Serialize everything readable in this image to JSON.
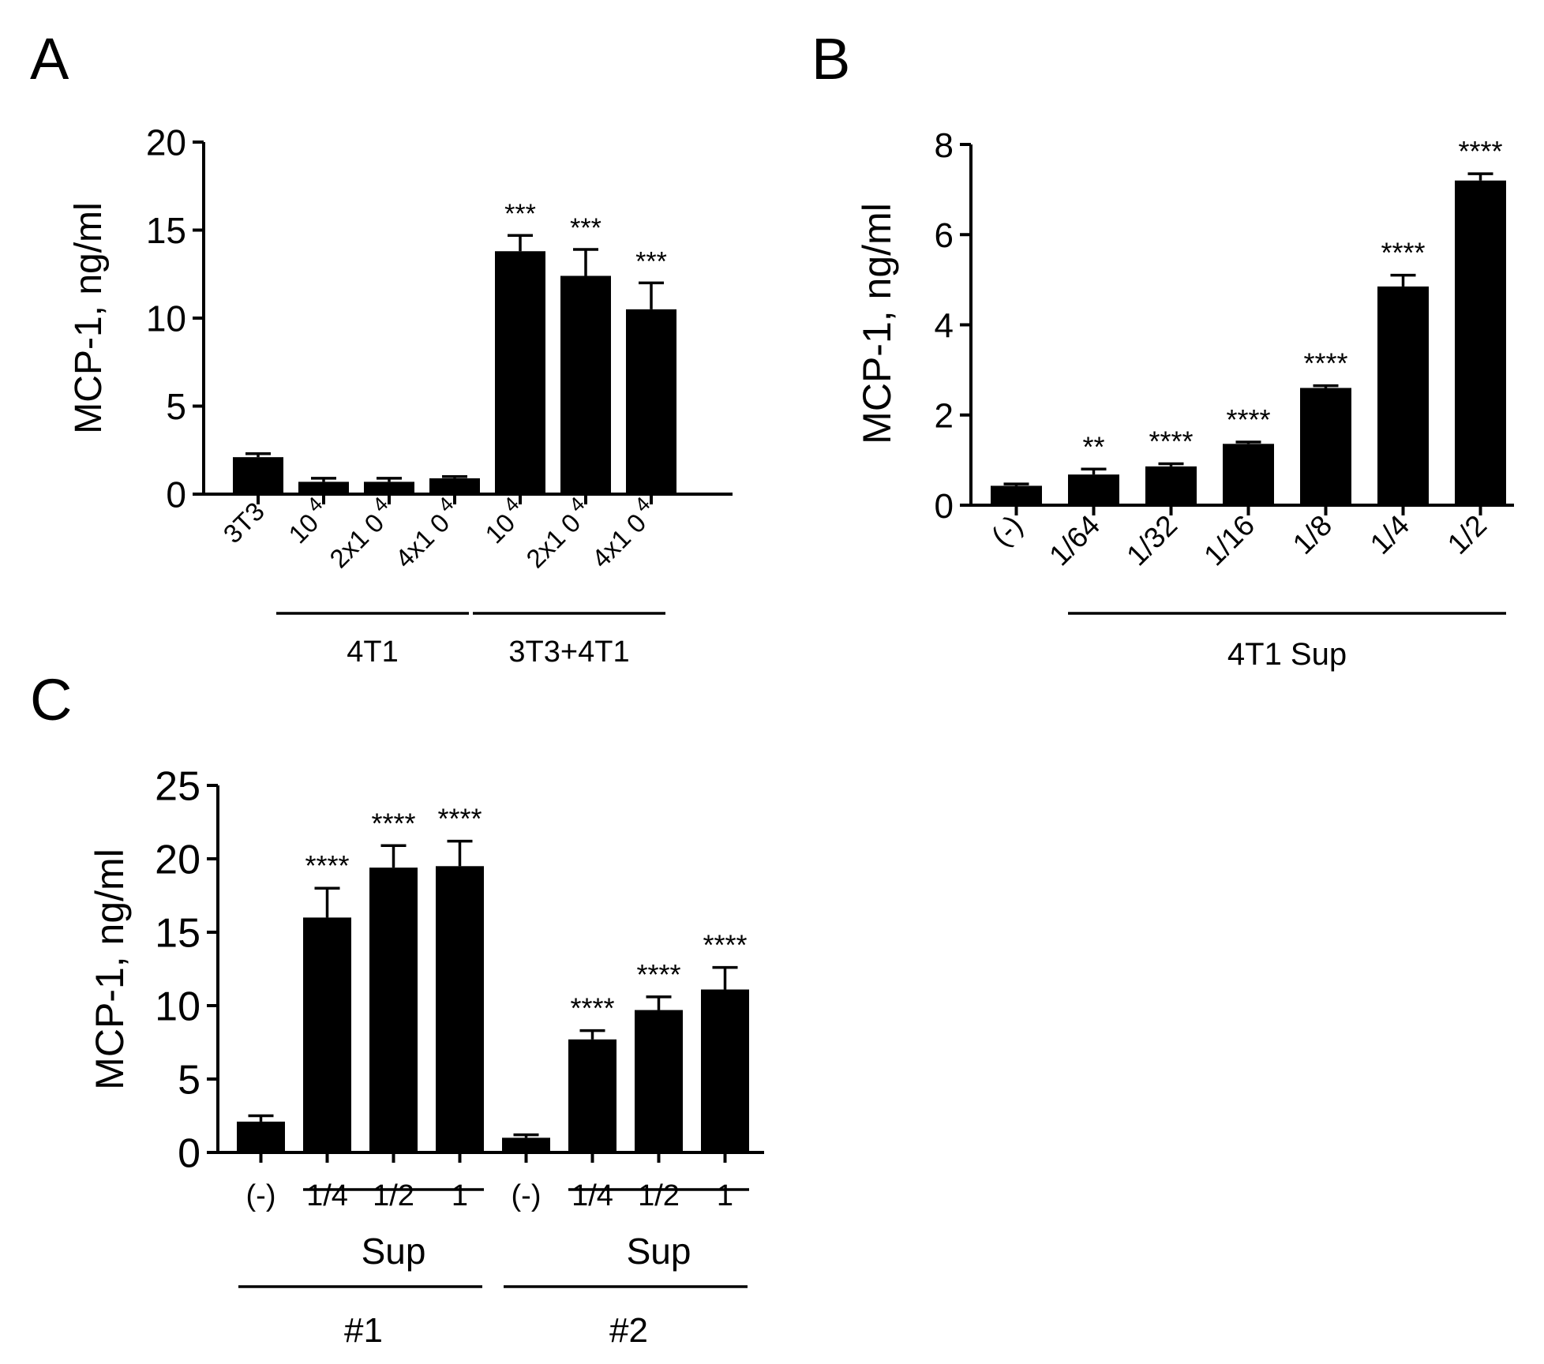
{
  "chart_data": [
    {
      "panel": "A",
      "type": "bar",
      "ylabel": "MCP-1, ng/ml",
      "ylim": [
        0,
        20
      ],
      "yticks": [
        0,
        5,
        10,
        15,
        20
      ],
      "categories": [
        "3T3",
        "10 4",
        "2x1 0 4",
        "4x1 0 4",
        "10 4",
        "2x1 0 4",
        "4x1 0 4"
      ],
      "tick_labels": [
        {
          "base": "3T3",
          "sup": ""
        },
        {
          "base": "10",
          "sup": "4"
        },
        {
          "base": "2x1 0",
          "sup": "4"
        },
        {
          "base": "4x1 0",
          "sup": "4"
        },
        {
          "base": "10",
          "sup": "4"
        },
        {
          "base": "2x1 0",
          "sup": "4"
        },
        {
          "base": "4x1 0",
          "sup": "4"
        }
      ],
      "values": [
        2.1,
        0.7,
        0.7,
        0.9,
        13.8,
        12.4,
        10.5
      ],
      "errors": [
        0.2,
        0.2,
        0.2,
        0.1,
        0.9,
        1.5,
        1.5
      ],
      "significance": [
        "",
        "",
        "",
        "",
        "***",
        "***",
        "***"
      ],
      "groups": [
        {
          "label": "4T1",
          "from": 1,
          "to": 3
        },
        {
          "label": "3T3+4T1",
          "from": 4,
          "to": 6
        }
      ]
    },
    {
      "panel": "B",
      "type": "bar",
      "ylabel": "MCP-1, ng/ml",
      "ylim": [
        0,
        8
      ],
      "yticks": [
        0,
        2,
        4,
        6,
        8
      ],
      "categories": [
        "(-)",
        "1/64",
        "1/32",
        "1/16",
        "1/8",
        "1/4",
        "1/2"
      ],
      "values": [
        0.43,
        0.68,
        0.86,
        1.36,
        2.6,
        4.85,
        7.2
      ],
      "errors": [
        0.04,
        0.12,
        0.06,
        0.04,
        0.05,
        0.25,
        0.15
      ],
      "significance": [
        "",
        "**",
        "****",
        "****",
        "****",
        "****",
        "****"
      ],
      "groups": [
        {
          "label": "4T1 Sup",
          "from": 1,
          "to": 6
        }
      ]
    },
    {
      "panel": "C",
      "type": "bar",
      "ylabel": "MCP-1, ng/ml",
      "ylim": [
        0,
        25
      ],
      "yticks": [
        0,
        5,
        10,
        15,
        20,
        25
      ],
      "categories": [
        "(-)",
        "1/4",
        "1/2",
        "1",
        "(-)",
        "1/4",
        "1/2",
        "1"
      ],
      "values": [
        2.1,
        16.0,
        19.4,
        19.5,
        1.0,
        7.7,
        9.7,
        11.1
      ],
      "errors": [
        0.4,
        2.0,
        1.5,
        1.7,
        0.2,
        0.6,
        0.9,
        1.5
      ],
      "significance": [
        "",
        "****",
        "****",
        "****",
        "",
        "****",
        "****",
        "****"
      ],
      "groups": [
        {
          "label": "Sup",
          "from": 1,
          "to": 3
        },
        {
          "label": "Sup",
          "from": 5,
          "to": 7
        }
      ],
      "outer_groups": [
        {
          "label": "#1",
          "from": 0,
          "to": 3
        },
        {
          "label": "#2",
          "from": 4,
          "to": 7
        }
      ]
    }
  ]
}
